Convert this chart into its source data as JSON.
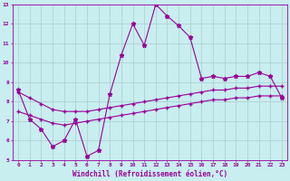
{
  "xlabel": "Windchill (Refroidissement éolien,°C)",
  "background_color": "#c8eef0",
  "grid_color": "#aacccc",
  "line_color": "#990099",
  "xlim": [
    -0.5,
    23.5
  ],
  "ylim": [
    5,
    13
  ],
  "xticks": [
    0,
    1,
    2,
    3,
    4,
    5,
    6,
    7,
    8,
    9,
    10,
    11,
    12,
    13,
    14,
    15,
    16,
    17,
    18,
    19,
    20,
    21,
    22,
    23
  ],
  "yticks": [
    5,
    6,
    7,
    8,
    9,
    10,
    11,
    12,
    13
  ],
  "line1_x": [
    0,
    1,
    2,
    3,
    4,
    5,
    6,
    7,
    8,
    9,
    10,
    11,
    12,
    13,
    14,
    15,
    16,
    17,
    18,
    19,
    20,
    21,
    22,
    23
  ],
  "line1_y": [
    8.6,
    7.1,
    6.6,
    5.7,
    6.0,
    7.1,
    5.2,
    5.5,
    8.4,
    10.4,
    12.0,
    10.9,
    13.0,
    12.4,
    11.9,
    11.3,
    9.2,
    9.3,
    9.2,
    9.3,
    9.3,
    9.5,
    9.3,
    8.2
  ],
  "line2_x": [
    0,
    1,
    2,
    3,
    4,
    5,
    6,
    7,
    8,
    9,
    10,
    11,
    12,
    13,
    14,
    15,
    16,
    17,
    18,
    19,
    20,
    21,
    22,
    23
  ],
  "line2_y": [
    8.5,
    8.2,
    7.9,
    7.6,
    7.5,
    7.5,
    7.5,
    7.6,
    7.7,
    7.8,
    7.9,
    8.0,
    8.1,
    8.2,
    8.3,
    8.4,
    8.5,
    8.6,
    8.6,
    8.7,
    8.7,
    8.8,
    8.8,
    8.8
  ],
  "line3_x": [
    0,
    1,
    2,
    3,
    4,
    5,
    6,
    7,
    8,
    9,
    10,
    11,
    12,
    13,
    14,
    15,
    16,
    17,
    18,
    19,
    20,
    21,
    22,
    23
  ],
  "line3_y": [
    7.5,
    7.3,
    7.1,
    6.9,
    6.8,
    6.9,
    7.0,
    7.1,
    7.2,
    7.3,
    7.4,
    7.5,
    7.6,
    7.7,
    7.8,
    7.9,
    8.0,
    8.1,
    8.1,
    8.2,
    8.2,
    8.3,
    8.3,
    8.3
  ]
}
